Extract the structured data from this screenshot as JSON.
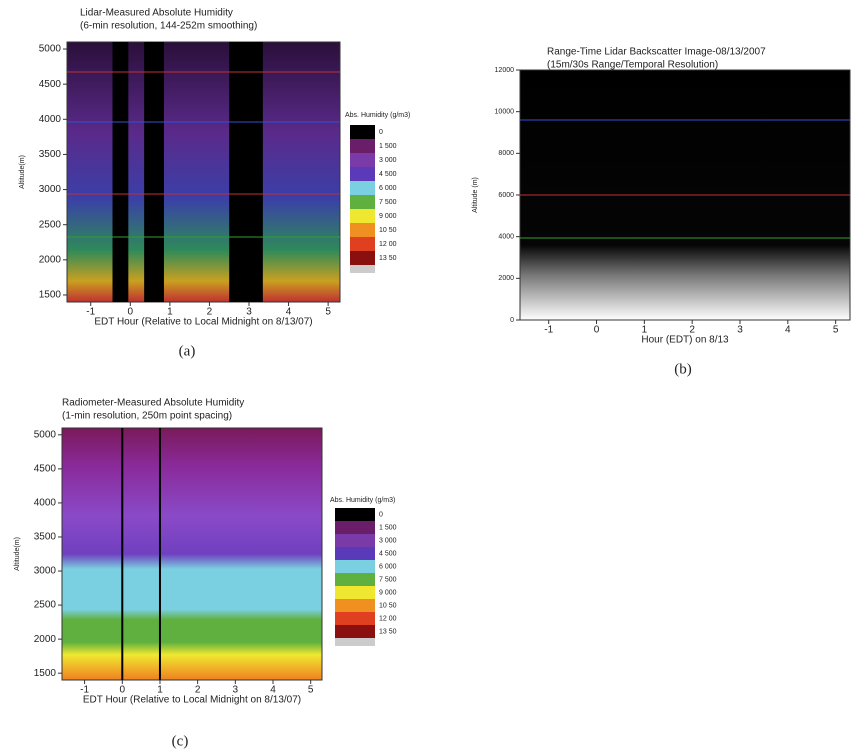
{
  "panels": [
    {
      "title": "Lidar-Measured Absolute Humidity",
      "subtitle": "(6-min resolution, 144-252m smoothing)",
      "ylabel": "Altitude(m)",
      "xlabel": "EDT Hour (Relative to Local Midnight on 8/13/07)",
      "caption": "(a)",
      "xlim": [
        -1.6,
        5.3
      ],
      "xticks": [
        -1,
        0,
        1,
        2,
        3,
        4,
        5
      ],
      "ylim": [
        1400,
        5100
      ],
      "yticks": [
        1500,
        2000,
        2500,
        3000,
        3500,
        4000,
        4500,
        5000
      ],
      "colorbar": {
        "title": "Abs. Humidity (g/m3)",
        "labels": [
          "0",
          "1 500",
          "3 000",
          "4 500",
          "6 000",
          "7 500",
          "9 000",
          "10 50",
          "12 00",
          "13 50"
        ]
      }
    },
    {
      "title": "Range-Time Lidar Backscatter Image-08/13/2007",
      "subtitle": "(15m/30s Range/Temporal Resolution)",
      "ylabel": "Altitude (m)",
      "xlabel": "Hour (EDT) on 8/13",
      "caption": "(b)",
      "xlim": [
        -1.6,
        5.3
      ],
      "xticks": [
        -1,
        0,
        1,
        2,
        3,
        4,
        5
      ],
      "ylim": [
        0,
        12000
      ],
      "yticks": [
        0,
        2000,
        4000,
        6000,
        8000,
        10000,
        12000
      ]
    },
    {
      "title": "Radiometer-Measured Absolute Humidity",
      "subtitle": "(1-min resolution, 250m point spacing)",
      "ylabel": "Altitude(m)",
      "xlabel": "EDT Hour (Relative to Local Midnight on 8/13/07)",
      "caption": "(c)",
      "xlim": [
        -1.6,
        5.3
      ],
      "xticks": [
        -1,
        0,
        1,
        2,
        3,
        4,
        5
      ],
      "ylim": [
        1400,
        5100
      ],
      "yticks": [
        1500,
        2000,
        2500,
        3000,
        3500,
        4000,
        4500,
        5000
      ],
      "colorbar": {
        "title": "Abs. Humidity (g/m3)",
        "labels": [
          "0",
          "1 500",
          "3 000",
          "4 500",
          "6 000",
          "7 500",
          "9 000",
          "10 50",
          "12 00",
          "13 50"
        ]
      }
    }
  ]
}
